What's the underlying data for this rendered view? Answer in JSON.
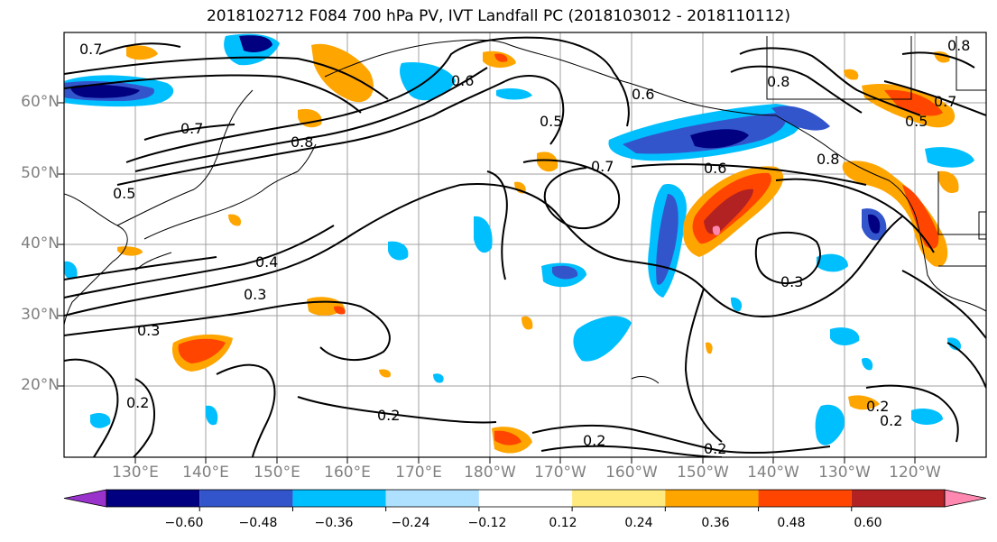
{
  "title": "2018102712 F084 700 hPa PV, IVT Landfall PC (2018103012 - 2018110112)",
  "lat_labels": [
    "60°N",
    "50°N",
    "40°N",
    "30°N",
    "20°N"
  ],
  "lon_labels": [
    "130°E",
    "140°E",
    "150°E",
    "160°E",
    "170°E",
    "180°W",
    "170°W",
    "160°W",
    "150°W",
    "140°W",
    "130°W",
    "120°W"
  ],
  "colorbar": {
    "ticks": [
      "−0.60",
      "−0.48",
      "−0.36",
      "−0.24",
      "−0.12",
      "0.12",
      "0.24",
      "0.36",
      "0.48",
      "0.60"
    ],
    "colors": [
      "#9933cc",
      "#000080",
      "#3355cc",
      "#00bfff",
      "#aee0ff",
      "#ffffff",
      "#ffea80",
      "#ffa500",
      "#ff4500",
      "#b22222",
      "#ff88b0"
    ]
  },
  "contour_labels": [
    "0.7",
    "0.8",
    "0.6",
    "0.5",
    "0.4",
    "0.3",
    "0.2",
    "0.8",
    "0.7",
    "0.6",
    "0.5",
    "0.3",
    "0.2",
    "0.2",
    "0.2",
    "0.7",
    "0.8",
    "0.7",
    "0.5",
    "0.8",
    "0.6",
    "0.3",
    "0.2",
    "0.2"
  ],
  "colors": {
    "axis": "#000000",
    "grid": "#808080",
    "tick_label": "#808080"
  }
}
